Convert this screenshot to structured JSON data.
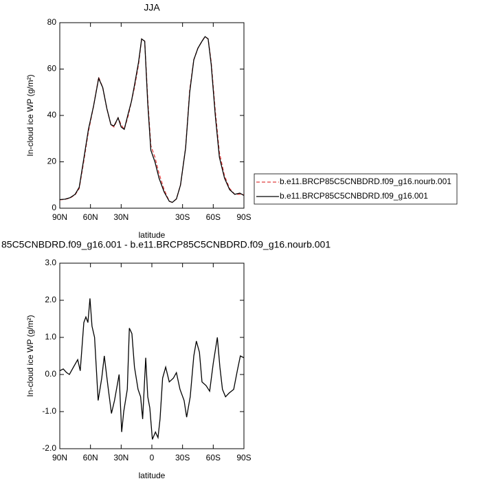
{
  "chart_data": [
    {
      "type": "line",
      "title": "JJA",
      "xlabel": "latitude",
      "ylabel": "In-cloud ice WP (g/m²)",
      "x": [
        90,
        85,
        80,
        75,
        71,
        67,
        62,
        57,
        52,
        48,
        44,
        40,
        37,
        33,
        30,
        27,
        23,
        20,
        17,
        13,
        10,
        7,
        4,
        1,
        -3,
        -7,
        -12,
        -17,
        -20,
        -24,
        -28,
        -33,
        -37,
        -41,
        -45,
        -49,
        -52,
        -55,
        -58,
        -62,
        -66,
        -71,
        -76,
        -81,
        -86,
        -90
      ],
      "series": [
        {
          "name": "b.e11.BRCP85C5CNBDRD.f09_g16.nourb.001",
          "color": "#e03c3c",
          "dash": true,
          "values": [
            3.6,
            3.8,
            4.4,
            5.8,
            8.5,
            19,
            33,
            44,
            56.5,
            52,
            43,
            36,
            35,
            39,
            36,
            34,
            40,
            46,
            52,
            62,
            73,
            72,
            47,
            27,
            22,
            15,
            8,
            3,
            2.5,
            4,
            10,
            26,
            51,
            64,
            69,
            72,
            74,
            73,
            63,
            42,
            24,
            14,
            8.5,
            6,
            6,
            5.8
          ]
        },
        {
          "name": "b.e11.BRCP85C5CNBDRD.f09_g16.001",
          "color": "#000000",
          "dash": false,
          "values": [
            3.7,
            3.9,
            4.5,
            6,
            9,
            20,
            34,
            44,
            56,
            52,
            43,
            36,
            35.5,
            39,
            35,
            34,
            41,
            46,
            53,
            63,
            73,
            72,
            45,
            25,
            20,
            13,
            7,
            3,
            2.5,
            4,
            10,
            26,
            50,
            64,
            69,
            72,
            74,
            73,
            62,
            40,
            22,
            13,
            8,
            6,
            6.5,
            5.5
          ]
        }
      ],
      "xlim": [
        90,
        -90
      ],
      "xticks": [
        {
          "value": 90,
          "label": "90N"
        },
        {
          "value": 60,
          "label": "60N"
        },
        {
          "value": 30,
          "label": "30N"
        },
        {
          "value": -30,
          "label": "30S"
        },
        {
          "value": -60,
          "label": "60S"
        },
        {
          "value": -90,
          "label": "90S"
        }
      ],
      "ylim": [
        0,
        80
      ],
      "yticks": [
        0,
        20,
        40,
        60,
        80
      ],
      "legend": "right"
    },
    {
      "type": "line",
      "title": "85C5CNBDRD.f09_g16.001 - b.e11.BRCP85C5CNBDRD.f09_g16.nourb.001",
      "xlabel": "latitude",
      "ylabel": "In-cloud ice WP (g/m²)",
      "x": [
        90,
        86.6,
        83.3,
        80.6,
        76.6,
        72.5,
        70,
        66.5,
        64.5,
        62.5,
        60.5,
        58.5,
        56,
        52.5,
        49,
        46.5,
        43,
        39.5,
        36.5,
        32,
        29.5,
        27.5,
        24,
        22,
        19.5,
        17,
        13.5,
        11,
        9,
        6,
        4,
        2,
        -0.5,
        -3.5,
        -6,
        -8,
        -10.5,
        -13.5,
        -17,
        -21,
        -24,
        -27.5,
        -31.5,
        -34,
        -37.5,
        -41,
        -43.5,
        -46.5,
        -49,
        -53,
        -56.5,
        -60,
        -64,
        -66.5,
        -69,
        -72,
        -75.5,
        -80,
        -83.5,
        -86.5,
        -90
      ],
      "values": [
        0.1,
        0.15,
        0.05,
        0.0,
        0.2,
        0.4,
        0.1,
        1.4,
        1.55,
        1.4,
        2.05,
        1.3,
        1.0,
        -0.7,
        -0.1,
        0.5,
        -0.3,
        -1.05,
        -0.7,
        0.0,
        -1.55,
        -1.0,
        -0.4,
        1.25,
        1.1,
        0.2,
        -0.4,
        -0.6,
        -1.2,
        0.45,
        -0.6,
        -0.9,
        -1.75,
        -1.55,
        -1.7,
        -1.2,
        -0.1,
        0.2,
        -0.2,
        -0.1,
        0.05,
        -0.4,
        -0.7,
        -1.15,
        -0.6,
        0.5,
        0.9,
        0.6,
        -0.2,
        -0.3,
        -0.45,
        0.3,
        1.0,
        0.2,
        -0.4,
        -0.6,
        -0.5,
        -0.4,
        0.1,
        0.5,
        0.45
      ],
      "color": "#000000",
      "xlim": [
        90,
        -90
      ],
      "xticks": [
        {
          "value": 90,
          "label": "90N"
        },
        {
          "value": 60,
          "label": "60N"
        },
        {
          "value": 30,
          "label": "30N"
        },
        0,
        {
          "value": -30,
          "label": "30S"
        },
        {
          "value": -60,
          "label": "60S"
        },
        {
          "value": -90,
          "label": "90S"
        }
      ],
      "ylim": [
        -2,
        3
      ],
      "yticks": [
        {
          "value": -2,
          "label": "-2.0"
        },
        {
          "value": -1,
          "label": "-1.0"
        },
        {
          "value": 0,
          "label": "0.0"
        },
        {
          "value": 1,
          "label": "1.0"
        },
        {
          "value": 2,
          "label": "2.0"
        },
        {
          "value": 3,
          "label": "3.0"
        }
      ]
    }
  ]
}
